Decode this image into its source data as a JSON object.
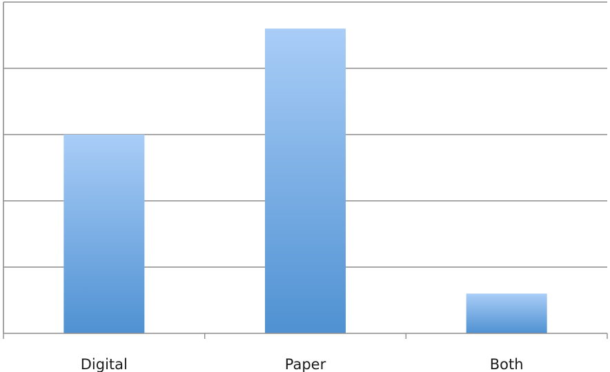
{
  "chart_data": {
    "type": "bar",
    "title": "",
    "xlabel": "",
    "ylabel": "",
    "categories": [
      "Digital",
      "Paper",
      "Both"
    ],
    "values": [
      3,
      4.6,
      0.6
    ],
    "ylim": [
      0,
      5
    ],
    "y_grid_step": 1,
    "y_tick_labels_shown": false,
    "grid": true,
    "legend": "none",
    "colors": {
      "bar_top": "#a9cdf7",
      "bar_bottom": "#4f91d2",
      "grid": "#8c8c8c",
      "label_text": "#1a1a1a"
    }
  }
}
